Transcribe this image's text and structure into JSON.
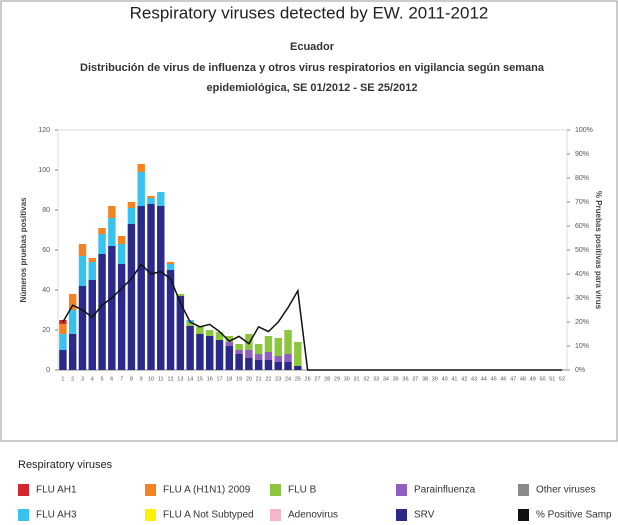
{
  "chart_data": {
    "type": "bar",
    "title": "Respiratory viruses detected by EW. 2011-2012",
    "subtitle": [
      "Ecuador",
      "Distribución de virus de influenza y otros virus respiratorios en vigilancia según semana",
      "epidemiológica, SE 01/2012 - SE 25/2012"
    ],
    "y_label": "Números pruebas positivas",
    "y2_label": "% Pruebas positivas para virus",
    "legend_title": "Respiratory viruses",
    "categories": [
      1,
      2,
      3,
      4,
      5,
      6,
      7,
      8,
      9,
      10,
      11,
      12,
      13,
      14,
      15,
      16,
      17,
      18,
      19,
      20,
      21,
      22,
      23,
      24,
      25,
      26,
      27,
      28,
      29,
      30,
      31,
      32,
      33,
      34,
      35,
      36,
      37,
      38,
      39,
      40,
      41,
      42,
      43,
      44,
      45,
      46,
      47,
      48,
      49,
      50,
      51,
      52
    ],
    "ylim": [
      0,
      120
    ],
    "yticks": [
      0,
      20,
      40,
      60,
      80,
      100,
      120
    ],
    "y2lim": [
      0,
      100
    ],
    "y2ticks": [
      {
        "value": 0,
        "label": "0%"
      },
      {
        "value": 10,
        "label": "10%"
      },
      {
        "value": 20,
        "label": "20%"
      },
      {
        "value": 30,
        "label": "30%"
      },
      {
        "value": 40,
        "label": "40%"
      },
      {
        "value": 50,
        "label": "50%"
      },
      {
        "value": 60,
        "label": "60%"
      },
      {
        "value": 70,
        "label": "70%"
      },
      {
        "value": 80,
        "label": "80%"
      },
      {
        "value": 90,
        "label": "90%"
      },
      {
        "value": 100,
        "label": "100%"
      }
    ],
    "series": [
      {
        "name": "SRV",
        "color": "#2b2a8a",
        "values": [
          10,
          18,
          42,
          45,
          58,
          62,
          53,
          73,
          82,
          83,
          82,
          50,
          37,
          22,
          18,
          17,
          15,
          12,
          8,
          6,
          5,
          5,
          4,
          4,
          2,
          null,
          null,
          null,
          null,
          null,
          null,
          null,
          null,
          null,
          null,
          null,
          null,
          null,
          null,
          null,
          null,
          null,
          null,
          null,
          null,
          null,
          null,
          null,
          null,
          null,
          null,
          null
        ]
      },
      {
        "name": "Parainfluenza",
        "color": "#8e5fbf",
        "values": [
          0,
          0,
          0,
          0,
          0,
          0,
          0,
          0,
          0,
          0,
          0,
          0,
          0,
          0,
          0,
          0,
          0,
          2,
          2,
          4,
          3,
          4,
          3,
          4,
          0,
          null,
          null,
          null,
          null,
          null,
          null,
          null,
          null,
          null,
          null,
          null,
          null,
          null,
          null,
          null,
          null,
          null,
          null,
          null,
          null,
          null,
          null,
          null,
          null,
          null,
          null,
          null
        ]
      },
      {
        "name": "FLU B",
        "color": "#8cc63f",
        "values": [
          0,
          0,
          0,
          0,
          0,
          0,
          0,
          0,
          0,
          0,
          0,
          0,
          1,
          2,
          4,
          3,
          4,
          3,
          3,
          8,
          5,
          8,
          9,
          12,
          12,
          null,
          null,
          null,
          null,
          null,
          null,
          null,
          null,
          null,
          null,
          null,
          null,
          null,
          null,
          null,
          null,
          null,
          null,
          null,
          null,
          null,
          null,
          null,
          null,
          null,
          null,
          null
        ]
      },
      {
        "name": "FLU AH3",
        "color": "#38c3ee",
        "values": [
          8,
          12,
          15,
          9,
          10,
          14,
          10,
          8,
          17,
          3,
          7,
          3,
          0,
          1,
          0,
          0,
          0,
          0,
          0,
          0,
          0,
          0,
          0,
          0,
          0,
          null,
          null,
          null,
          null,
          null,
          null,
          null,
          null,
          null,
          null,
          null,
          null,
          null,
          null,
          null,
          null,
          null,
          null,
          null,
          null,
          null,
          null,
          null,
          null,
          null,
          null,
          null
        ]
      },
      {
        "name": "FLU A (H1N1) 2009",
        "color": "#f58220",
        "values": [
          5,
          8,
          6,
          2,
          3,
          6,
          4,
          3,
          4,
          1,
          0,
          1,
          0,
          0,
          0,
          0,
          0,
          0,
          0,
          0,
          0,
          0,
          0,
          0,
          0,
          null,
          null,
          null,
          null,
          null,
          null,
          null,
          null,
          null,
          null,
          null,
          null,
          null,
          null,
          null,
          null,
          null,
          null,
          null,
          null,
          null,
          null,
          null,
          null,
          null,
          null,
          null
        ]
      },
      {
        "name": "FLU AH1",
        "color": "#d7262e",
        "values": [
          2,
          0,
          0,
          0,
          0,
          0,
          0,
          0,
          0,
          0,
          0,
          0,
          0,
          0,
          0,
          0,
          0,
          0,
          0,
          0,
          0,
          0,
          0,
          0,
          0,
          null,
          null,
          null,
          null,
          null,
          null,
          null,
          null,
          null,
          null,
          null,
          null,
          null,
          null,
          null,
          null,
          null,
          null,
          null,
          null,
          null,
          null,
          null,
          null,
          null,
          null,
          null
        ]
      },
      {
        "name": "FLU A Not Subtyped",
        "color": "#fff200",
        "values": [
          0,
          0,
          0,
          0,
          0,
          0,
          0,
          0,
          0,
          0,
          0,
          0,
          0,
          0,
          0,
          0,
          0,
          0,
          0,
          0,
          0,
          0,
          0,
          0,
          0,
          null,
          null,
          null,
          null,
          null,
          null,
          null,
          null,
          null,
          null,
          null,
          null,
          null,
          null,
          null,
          null,
          null,
          null,
          null,
          null,
          null,
          null,
          null,
          null,
          null,
          null,
          null
        ]
      },
      {
        "name": "Adenovirus",
        "color": "#f4b6c8",
        "values": [
          0,
          0,
          0,
          0,
          0,
          0,
          0,
          0,
          0,
          0,
          0,
          0,
          0,
          0,
          0,
          0,
          0,
          0,
          0,
          0,
          0,
          0,
          0,
          0,
          0,
          null,
          null,
          null,
          null,
          null,
          null,
          null,
          null,
          null,
          null,
          null,
          null,
          null,
          null,
          null,
          null,
          null,
          null,
          null,
          null,
          null,
          null,
          null,
          null,
          null,
          null,
          null
        ]
      },
      {
        "name": "Other viruses",
        "color": "#8a8a8a",
        "values": [
          0,
          0,
          0,
          0,
          0,
          0,
          0,
          0,
          0,
          0,
          0,
          0,
          0,
          0,
          0,
          0,
          0,
          0,
          0,
          0,
          0,
          0,
          0,
          0,
          0,
          null,
          null,
          null,
          null,
          null,
          null,
          null,
          null,
          null,
          null,
          null,
          null,
          null,
          null,
          null,
          null,
          null,
          null,
          null,
          null,
          null,
          null,
          null,
          null,
          null,
          null,
          null
        ]
      },
      {
        "name": "% Positive Samp",
        "color": "#111111",
        "axis": "y2",
        "values": [
          20,
          27,
          25,
          22,
          27,
          30,
          34,
          38,
          44,
          40,
          41,
          38,
          28,
          20,
          18,
          19,
          16,
          12,
          14,
          11,
          18,
          16,
          20,
          26,
          33,
          0,
          0,
          0,
          0,
          0,
          0,
          0,
          0,
          0,
          0,
          0,
          0,
          0,
          0,
          0,
          0,
          0,
          0,
          0,
          0,
          0,
          0,
          0,
          0,
          0,
          0,
          0
        ]
      }
    ]
  }
}
